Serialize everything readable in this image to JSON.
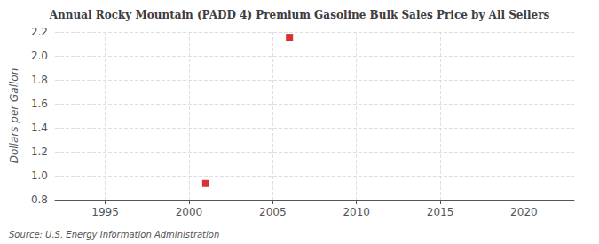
{
  "chart_data": {
    "type": "scatter",
    "title": "Annual Rocky Mountain (PADD 4) Premium Gasoline Bulk Sales Price by All Sellers",
    "ylabel": "Dollars per Gallon",
    "annotation": "Source: U.S. Energy Information Administration",
    "x": [
      2001,
      2006
    ],
    "values": [
      0.935,
      2.155
    ],
    "color": "#cc0000",
    "marker": "square",
    "xlim": [
      1992,
      2023
    ],
    "xticks": [
      1995,
      2000,
      2005,
      2010,
      2015,
      2020
    ],
    "ylim": [
      0.8,
      2.2
    ],
    "yticks": [
      0.8,
      {
        "value": 1.0,
        "label": "1.0"
      },
      1.2,
      1.4,
      1.6,
      1.8,
      {
        "value": 2.0,
        "label": "2.0"
      },
      2.2
    ],
    "grid": true
  }
}
